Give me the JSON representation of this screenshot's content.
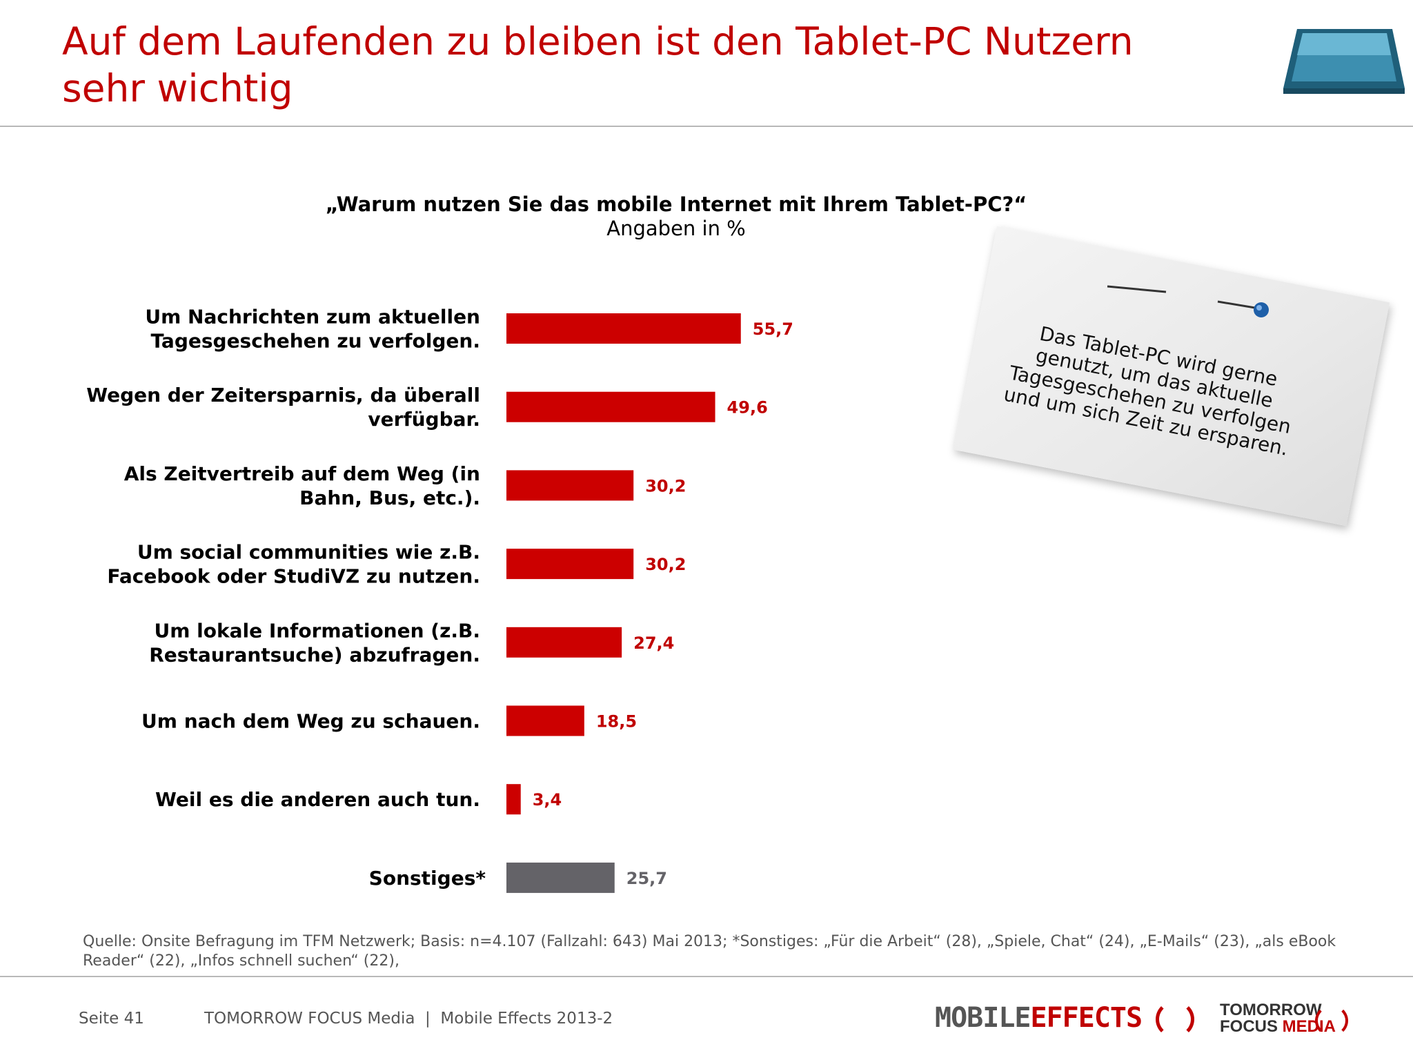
{
  "header": {
    "title_line1": "Auf dem Laufenden zu bleiben ist den Tablet-PC Nutzern",
    "title_line2": "sehr wichtig"
  },
  "chart_data": {
    "type": "bar",
    "orientation": "horizontal",
    "title": "„Warum nutzen Sie das mobile Internet mit Ihrem Tablet-PC?“",
    "subtitle": "Angaben in %",
    "categories": [
      [
        "Um Nachrichten zum aktuellen",
        "Tagesgeschehen zu verfolgen."
      ],
      [
        "Wegen der Zeitersparnis, da überall",
        "verfügbar."
      ],
      [
        "Als Zeitvertreib auf dem Weg (in",
        "Bahn, Bus, etc.)."
      ],
      [
        "Um social communities wie z.B.",
        "Facebook oder StudiVZ zu nutzen."
      ],
      [
        "Um lokale Informationen (z.B.",
        "Restaurantsuche) abzufragen."
      ],
      [
        "Um nach dem Weg zu schauen."
      ],
      [
        "Weil es die anderen auch tun."
      ],
      [
        "Sonstiges*"
      ]
    ],
    "values": [
      55.7,
      49.6,
      30.2,
      30.2,
      27.4,
      18.5,
      3.4,
      25.7
    ],
    "value_labels": [
      "55,7",
      "49,6",
      "30,2",
      "30,2",
      "27,4",
      "18,5",
      "3,4",
      "25,7"
    ],
    "bar_colors": [
      "#cc0000",
      "#cc0000",
      "#cc0000",
      "#cc0000",
      "#cc0000",
      "#cc0000",
      "#cc0000",
      "#646368"
    ],
    "label_colors": [
      "#c00000",
      "#c00000",
      "#c00000",
      "#c00000",
      "#c00000",
      "#c00000",
      "#c00000",
      "#646368"
    ],
    "xlim": [
      0,
      100
    ],
    "grid": false,
    "legend": "none"
  },
  "note": {
    "lines": [
      "Das Tablet-PC wird gerne",
      "genutzt, um das aktuelle",
      "Tagesgeschehen zu verfolgen",
      "und um sich Zeit zu ersparen."
    ]
  },
  "source": "Quelle: Onsite Befragung im TFM Netzwerk; Basis: n=4.107 (Fallzahl: 643) Mai 2013; *Sonstiges: „Für die Arbeit“ (28), „Spiele, Chat“ (24), „E-Mails“ (23), „als eBook Reader“ (22), „Infos schnell suchen“ (22),",
  "footer": {
    "page": "Seite 41",
    "text": "TOMORROW FOCUS Media  |  Mobile Effects 2013-2",
    "logo_mobile": "MOBILE",
    "logo_effects": "EFFECTS",
    "logo_tomorrow": "TOMORROW",
    "logo_focus": "FOCUS",
    "logo_media": "MEDIA"
  }
}
